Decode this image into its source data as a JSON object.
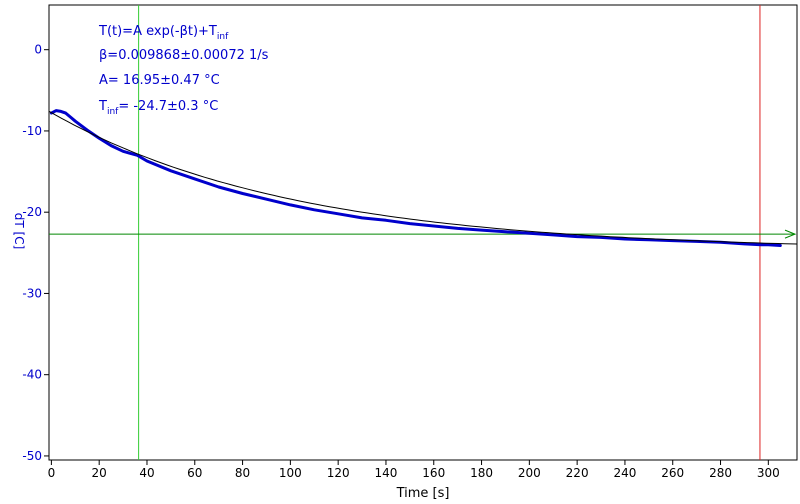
{
  "chart_data": {
    "type": "line",
    "xlabel": "Time [s]",
    "ylabel": "dT [C]",
    "xlim": [
      -1,
      312
    ],
    "ylim": [
      -50.5,
      5.5
    ],
    "x_ticks": [
      0,
      20,
      40,
      60,
      80,
      100,
      120,
      140,
      160,
      180,
      200,
      220,
      240,
      260,
      280,
      300
    ],
    "y_ticks": [
      0,
      -10,
      -20,
      -30,
      -40,
      -50
    ],
    "grid": false,
    "legend": "none",
    "annotation": {
      "formula_main": "T(t)=A exp(-βt)+T",
      "formula_sub": "inf",
      "beta": "β=0.009868±0.00072 1/s",
      "amplitude": "A= 16.95±0.47 °C",
      "t_inf_prefix": "T",
      "t_inf_sub": "inf",
      "t_inf_value": "= -24.7±0.3 °C"
    },
    "series": [
      {
        "role": "measured",
        "x": [
          0,
          2,
          4,
          6,
          8,
          10,
          15,
          20,
          25,
          30,
          36,
          40,
          50,
          60,
          70,
          80,
          90,
          100,
          110,
          120,
          130,
          140,
          150,
          160,
          170,
          180,
          190,
          200,
          210,
          220,
          230,
          240,
          250,
          260,
          270,
          280,
          290,
          297,
          300,
          305
        ],
        "y": [
          -7.8,
          -7.5,
          -7.6,
          -7.8,
          -8.3,
          -8.8,
          -9.9,
          -10.9,
          -11.8,
          -12.5,
          -13.0,
          -13.7,
          -14.9,
          -15.9,
          -16.9,
          -17.7,
          -18.4,
          -19.1,
          -19.7,
          -20.2,
          -20.7,
          -21.0,
          -21.4,
          -21.7,
          -22.0,
          -22.2,
          -22.4,
          -22.6,
          -22.8,
          -23.0,
          -23.1,
          -23.3,
          -23.4,
          -23.5,
          -23.6,
          -23.7,
          -23.9,
          -24.0,
          -24.0,
          -24.1
        ],
        "color": "#0000cc"
      },
      {
        "role": "fit",
        "model": "exponential",
        "A": 16.95,
        "beta": 0.009868,
        "t_inf": -24.7,
        "x_range": [
          -1,
          312
        ],
        "color": "#000000"
      }
    ],
    "markers": {
      "cursor_left_x": 36.5,
      "cursor_right_x": 296.5,
      "level_y": -22.7,
      "cursor_left_color": "#33cc33",
      "cursor_right_color": "#dd2222",
      "level_color": "#008800"
    },
    "colors": {
      "axis": "#000000",
      "tick_label_y": "#0000cc",
      "tick_label_x": "#000000",
      "ylabel": "#0000cc",
      "annotation": "#0000cc"
    }
  }
}
